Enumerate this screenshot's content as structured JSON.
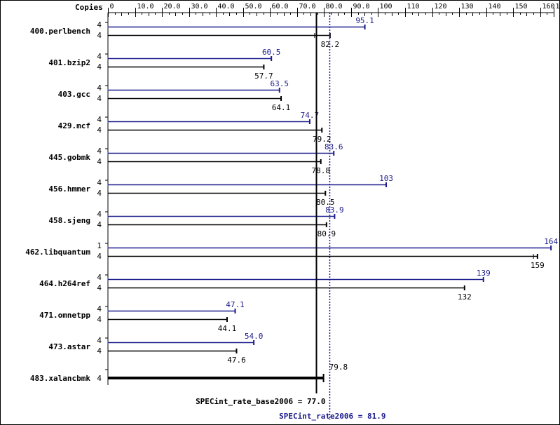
{
  "chart_data": {
    "type": "bar",
    "orientation": "horizontal",
    "axis_header": "Copies",
    "xlim": [
      0,
      165
    ],
    "x_ticks": [
      0,
      10.0,
      20.0,
      30.0,
      40.0,
      50.0,
      60.0,
      70.0,
      80.0,
      90.0,
      100,
      110,
      120,
      130,
      140,
      150,
      160,
      165
    ],
    "x_tick_labels": [
      "0",
      "10.0",
      "20.0",
      "30.0",
      "40.0",
      "50.0",
      "60.0",
      "70.0",
      "80.0",
      "90.0",
      "100",
      "110",
      "120",
      "130",
      "140",
      "150",
      "160",
      "165"
    ],
    "colors": {
      "peak": "#1c1c8c",
      "base": "#000000"
    },
    "benchmarks": [
      {
        "name": "400.perlbench",
        "peak_copies": "4",
        "peak": 95.1,
        "peak_label": "95.1",
        "base_copies": "4",
        "base": 82.2,
        "base_label": "82.2",
        "base_min": 76.5
      },
      {
        "name": "401.bzip2",
        "peak_copies": "4",
        "peak": 60.5,
        "peak_label": "60.5",
        "base_copies": "4",
        "base": 57.7,
        "base_label": "57.7"
      },
      {
        "name": "403.gcc",
        "peak_copies": "4",
        "peak": 63.5,
        "peak_label": "63.5",
        "base_copies": "4",
        "base": 64.1,
        "base_label": "64.1"
      },
      {
        "name": "429.mcf",
        "peak_copies": "4",
        "peak": 74.7,
        "peak_label": "74.7",
        "base_copies": "4",
        "base": 79.2,
        "base_label": "79.2"
      },
      {
        "name": "445.gobmk",
        "peak_copies": "4",
        "peak": 83.6,
        "peak_label": "83.6",
        "base_copies": "4",
        "base": 78.8,
        "base_label": "78.8"
      },
      {
        "name": "456.hmmer",
        "peak_copies": "4",
        "peak": 103,
        "peak_label": "103",
        "base_copies": "4",
        "base": 80.5,
        "base_label": "80.5"
      },
      {
        "name": "458.sjeng",
        "peak_copies": "4",
        "peak": 83.9,
        "peak_label": "83.9",
        "base_copies": "4",
        "base": 80.9,
        "base_label": "80.9"
      },
      {
        "name": "462.libquantum",
        "peak_copies": "1",
        "peak": 164,
        "peak_label": "164",
        "base_copies": "4",
        "base": 159,
        "base_label": "159",
        "base_min": 157.5
      },
      {
        "name": "464.h264ref",
        "peak_copies": "4",
        "peak": 139,
        "peak_label": "139",
        "base_copies": "4",
        "base": 132,
        "base_label": "132"
      },
      {
        "name": "471.omnetpp",
        "peak_copies": "4",
        "peak": 47.1,
        "peak_label": "47.1",
        "base_copies": "4",
        "base": 44.1,
        "base_label": "44.1"
      },
      {
        "name": "473.astar",
        "peak_copies": "4",
        "peak": 54.0,
        "peak_label": "54.0",
        "base_copies": "4",
        "base": 47.6,
        "base_label": "47.6"
      },
      {
        "name": "483.xalancbmk",
        "peak_copies": null,
        "peak": null,
        "peak_label": null,
        "base_copies": "4",
        "base": 79.8,
        "base_label": "79.8"
      }
    ],
    "summary": {
      "base_value": 77.0,
      "base_label": "SPECint_rate_base2006 = 77.0",
      "peak_value": 81.9,
      "peak_label": "SPECint_rate2006 = 81.9"
    },
    "grid": false,
    "legend": "none"
  }
}
